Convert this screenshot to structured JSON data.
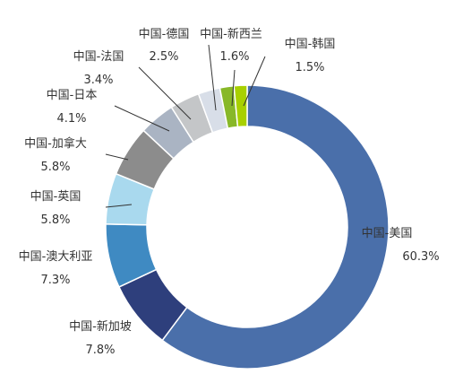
{
  "chart_data": {
    "type": "pie",
    "style": "donut",
    "title": "",
    "slices": [
      {
        "name": "中国-美国",
        "value": 60.3,
        "value_label": "60.3%",
        "color": "#4a6faa"
      },
      {
        "name": "中国-新加坡",
        "value": 7.8,
        "value_label": "7.8%",
        "color": "#2e3f7c"
      },
      {
        "name": "中国-澳大利亚",
        "value": 7.3,
        "value_label": "7.3%",
        "color": "#3f8ac2"
      },
      {
        "name": "中国-英国",
        "value": 5.8,
        "value_label": "5.8%",
        "color": "#a9d9ee"
      },
      {
        "name": "中国-加拿大",
        "value": 5.8,
        "value_label": "5.8%",
        "color": "#8c8c8c"
      },
      {
        "name": "中国-日本",
        "value": 4.1,
        "value_label": "4.1%",
        "color": "#aab4c3"
      },
      {
        "name": "中国-法国",
        "value": 3.4,
        "value_label": "3.4%",
        "color": "#c4c6c8"
      },
      {
        "name": "中国-德国",
        "value": 2.5,
        "value_label": "2.5%",
        "color": "#d8dee8"
      },
      {
        "name": "中国-新西兰",
        "value": 1.6,
        "value_label": "1.6%",
        "color": "#88b828"
      },
      {
        "name": "中国-韩国",
        "value": 1.5,
        "value_label": "1.5%",
        "color": "#a8d000"
      }
    ]
  }
}
